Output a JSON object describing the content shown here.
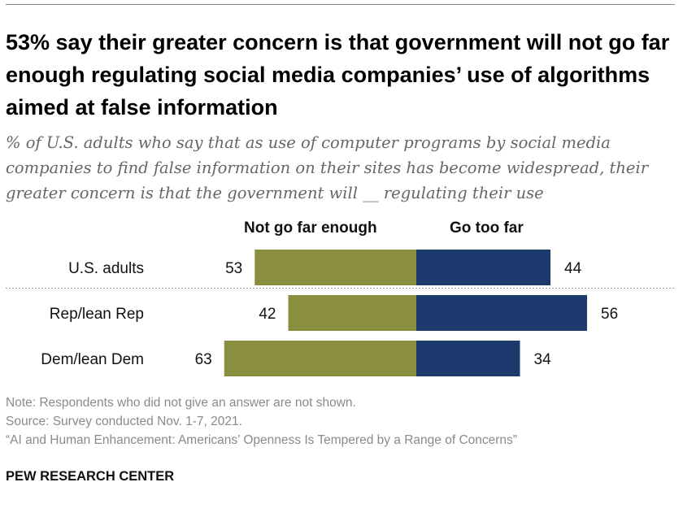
{
  "header": {
    "title": "53% say their greater concern is that government will not go far enough regulating social media companies’ use of algorithms aimed at false information",
    "subtitle": "% of U.S. adults who say that as use of computer programs by social media companies to find false information on their sites has become widespread, their greater concern is that the government will __ regulating their use"
  },
  "chart_data": {
    "type": "bar",
    "orientation": "horizontal-diverging",
    "categories": [
      "U.S. adults",
      "Rep/lean Rep",
      "Dem/lean Dem"
    ],
    "series": [
      {
        "name": "Not go far enough",
        "values": [
          53,
          42,
          63
        ],
        "color": "#8a8f3f"
      },
      {
        "name": "Go too far",
        "values": [
          44,
          56,
          34
        ],
        "color": "#1d3a6e"
      }
    ],
    "value_labels": {
      "not_far": [
        "53",
        "42",
        "63"
      ],
      "too_far": [
        "44",
        "56",
        "34"
      ]
    },
    "xlim": [
      -70,
      70
    ],
    "unit": "%"
  },
  "footer": {
    "note": "Note: Respondents who did not give an answer are not shown.",
    "source": "Source: Survey conducted Nov. 1-7, 2021.",
    "report": "“AI and Human Enhancement: Americans’ Openness Is Tempered by a Range of Concerns”",
    "org": "PEW RESEARCH CENTER"
  }
}
